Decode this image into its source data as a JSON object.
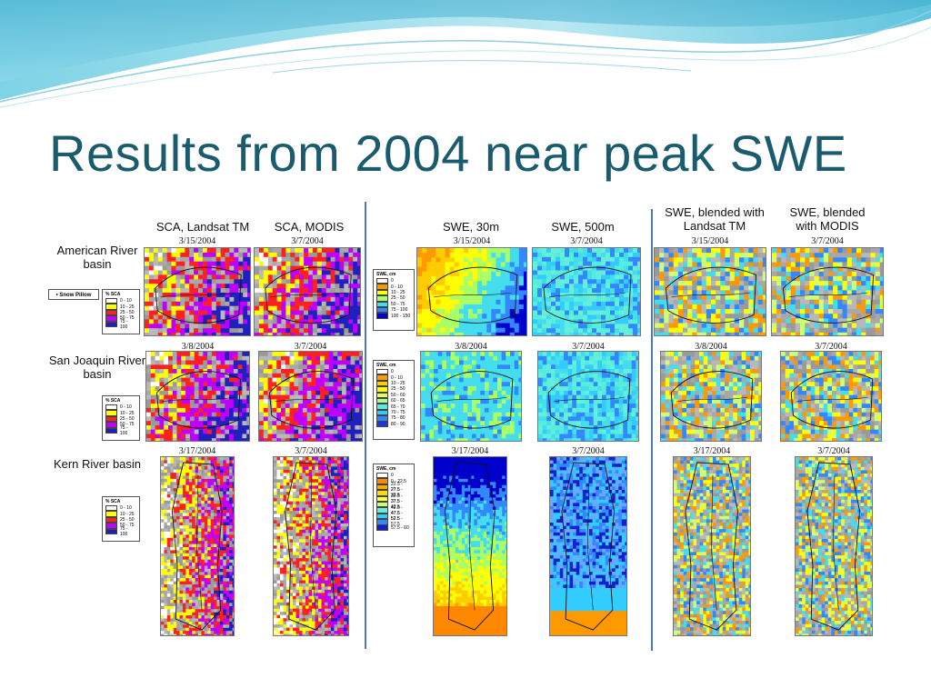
{
  "slide": {
    "title": "Results from 2004 near peak SWE"
  },
  "columns": [
    {
      "id": "sca-landsat",
      "label": "SCA, Landsat TM"
    },
    {
      "id": "sca-modis",
      "label": "SCA, MODIS"
    },
    {
      "id": "swe-30m",
      "label": "SWE, 30m"
    },
    {
      "id": "swe-500m",
      "label": "SWE, 500m"
    },
    {
      "id": "swe-blend-landsat",
      "label": "SWE, blended with Landsat TM"
    },
    {
      "id": "swe-blend-modis",
      "label": "SWE, blended with MODIS"
    }
  ],
  "rows": [
    {
      "id": "american",
      "label": "American River basin",
      "dates": [
        "3/15/2004",
        "3/7/2004",
        "3/15/2004",
        "3/7/2004",
        "3/15/2004",
        "3/7/2004"
      ]
    },
    {
      "id": "san-joaquin",
      "label": "San Joaquin River basin",
      "dates": [
        "3/8/2004",
        "3/7/2004",
        "3/8/2004",
        "3/7/2004",
        "3/8/2004",
        "3/7/2004"
      ]
    },
    {
      "id": "kern",
      "label": "Kern River basin",
      "dates": [
        "3/17/2004",
        "3/7/2004",
        "3/17/2004",
        "3/7/2004",
        "3/17/2004",
        "3/7/2004"
      ]
    }
  ],
  "snow_pillow_label": "Snow Pillow",
  "legends": {
    "sca": {
      "title": "% SCA",
      "items": [
        {
          "label": "0 - 10",
          "color": "#ffffff"
        },
        {
          "label": "10 - 25",
          "color": "#ffff00"
        },
        {
          "label": "25 - 50",
          "color": "#ff2020"
        },
        {
          "label": "50 - 75",
          "color": "#c000ff"
        },
        {
          "label": "75 - 100",
          "color": "#2020c0"
        }
      ]
    },
    "swe_american": {
      "title": "SWE, cm",
      "items": [
        {
          "label": "0",
          "color": "#ffffff"
        },
        {
          "label": "0 - 10",
          "color": "#ff9900"
        },
        {
          "label": "10 - 25",
          "color": "#ffff00"
        },
        {
          "label": "25 - 50",
          "color": "#aaff66"
        },
        {
          "label": "50 - 75",
          "color": "#44ddee"
        },
        {
          "label": "75 - 100",
          "color": "#3388ff"
        },
        {
          "label": "100 - 150",
          "color": "#0000cc"
        }
      ]
    },
    "swe_sanjoaquin": {
      "title": "SWE, cm",
      "items": [
        {
          "label": "0",
          "color": "#ffffff"
        },
        {
          "label": "0 - 10",
          "color": "#ff9900"
        },
        {
          "label": "10 - 25",
          "color": "#ffcc00"
        },
        {
          "label": "25 - 50",
          "color": "#ffff00"
        },
        {
          "label": "50 - 60",
          "color": "#ddff55"
        },
        {
          "label": "60 - 65",
          "color": "#aaff88"
        },
        {
          "label": "65 - 70",
          "color": "#55eedd"
        },
        {
          "label": "70 - 75",
          "color": "#33ccff"
        },
        {
          "label": "75 - 80",
          "color": "#3388ff"
        },
        {
          "label": "80 - 90",
          "color": "#2233dd"
        }
      ]
    },
    "swe_kern": {
      "title": "SWE, cm",
      "items": [
        {
          "label": "0",
          "color": "#ffffff"
        },
        {
          "label": "0 - 22.5",
          "color": "#ff8800"
        },
        {
          "label": "22.5 - 27.5",
          "color": "#ffaa00"
        },
        {
          "label": "27.5 - 32.5",
          "color": "#ffdd00"
        },
        {
          "label": "32.5 - 37.5",
          "color": "#ffff44"
        },
        {
          "label": "37.5 - 42.5",
          "color": "#ccff77"
        },
        {
          "label": "42.5 - 47.5",
          "color": "#66eedd"
        },
        {
          "label": "47.5 - 52.5",
          "color": "#33ccff"
        },
        {
          "label": "52.5 - 57.5",
          "color": "#3388ff"
        },
        {
          "label": "57.5 - 60",
          "color": "#1122cc"
        }
      ]
    }
  }
}
